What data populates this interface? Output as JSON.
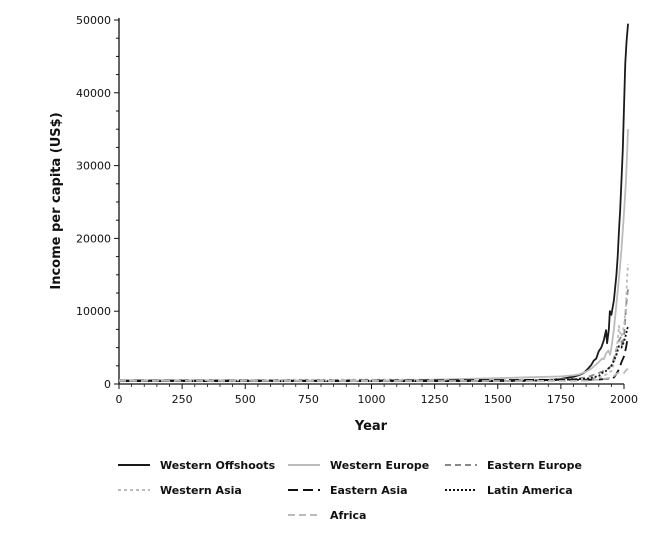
{
  "chart_data": {
    "type": "line",
    "title": "",
    "xlabel": "Year",
    "ylabel": "Income per capita (US$)",
    "xlim": [
      0,
      2000
    ],
    "ylim": [
      0,
      50000
    ],
    "x_ticks": [
      0,
      250,
      500,
      750,
      1000,
      1250,
      1500,
      1750,
      2000
    ],
    "y_ticks": [
      0,
      10000,
      20000,
      30000,
      40000,
      50000
    ],
    "grid": false,
    "legend_position": "bottom",
    "series": [
      {
        "name": "Western Offshoots",
        "color": "#1a1a1a",
        "dash": "solid",
        "points": [
          [
            0,
            400
          ],
          [
            500,
            400
          ],
          [
            1000,
            400
          ],
          [
            1500,
            400
          ],
          [
            1600,
            450
          ],
          [
            1700,
            550
          ],
          [
            1750,
            700
          ],
          [
            1800,
            1000
          ],
          [
            1820,
            1200
          ],
          [
            1840,
            1500
          ],
          [
            1860,
            2200
          ],
          [
            1870,
            2600
          ],
          [
            1880,
            3200
          ],
          [
            1890,
            3500
          ],
          [
            1900,
            4500
          ],
          [
            1910,
            5000
          ],
          [
            1913,
            5300
          ],
          [
            1920,
            6000
          ],
          [
            1929,
            7400
          ],
          [
            1933,
            5600
          ],
          [
            1940,
            7500
          ],
          [
            1944,
            10000
          ],
          [
            1950,
            9500
          ],
          [
            1960,
            11500
          ],
          [
            1970,
            15000
          ],
          [
            1975,
            17500
          ],
          [
            1980,
            21000
          ],
          [
            1985,
            24000
          ],
          [
            1990,
            28000
          ],
          [
            1995,
            32000
          ],
          [
            2000,
            38000
          ],
          [
            2005,
            44000
          ],
          [
            2010,
            47000
          ],
          [
            2016,
            49500
          ]
        ]
      },
      {
        "name": "Western Europe",
        "color": "#bbbbbb",
        "dash": "solid",
        "points": [
          [
            0,
            550
          ],
          [
            500,
            500
          ],
          [
            1000,
            450
          ],
          [
            1250,
            600
          ],
          [
            1500,
            800
          ],
          [
            1600,
            900
          ],
          [
            1700,
            1000
          ],
          [
            1750,
            1050
          ],
          [
            1800,
            1200
          ],
          [
            1820,
            1300
          ],
          [
            1850,
            1700
          ],
          [
            1870,
            2100
          ],
          [
            1900,
            3000
          ],
          [
            1913,
            3500
          ],
          [
            1920,
            3400
          ],
          [
            1929,
            4200
          ],
          [
            1938,
            4600
          ],
          [
            1945,
            4000
          ],
          [
            1950,
            5000
          ],
          [
            1960,
            7500
          ],
          [
            1970,
            11000
          ],
          [
            1980,
            14500
          ],
          [
            1990,
            18500
          ],
          [
            2000,
            23500
          ],
          [
            2008,
            28000
          ],
          [
            2016,
            35000
          ]
        ]
      },
      {
        "name": "Eastern Europe",
        "color": "#888888",
        "dash": "6,4",
        "points": [
          [
            0,
            400
          ],
          [
            1000,
            400
          ],
          [
            1500,
            500
          ],
          [
            1700,
            600
          ],
          [
            1800,
            700
          ],
          [
            1850,
            900
          ],
          [
            1900,
            1500
          ],
          [
            1913,
            1700
          ],
          [
            1929,
            1900
          ],
          [
            1950,
            2500
          ],
          [
            1960,
            3500
          ],
          [
            1970,
            4800
          ],
          [
            1980,
            6000
          ],
          [
            1989,
            6500
          ],
          [
            1992,
            5000
          ],
          [
            2000,
            6500
          ],
          [
            2008,
            10500
          ],
          [
            2012,
            12000
          ],
          [
            2016,
            13000
          ]
        ]
      },
      {
        "name": "Western Asia",
        "color": "#bbbbbb",
        "dash": "3,3",
        "points": [
          [
            0,
            520
          ],
          [
            1000,
            600
          ],
          [
            1500,
            600
          ],
          [
            1700,
            600
          ],
          [
            1800,
            650
          ],
          [
            1850,
            700
          ],
          [
            1900,
            850
          ],
          [
            1913,
            1000
          ],
          [
            1929,
            1300
          ],
          [
            1950,
            1800
          ],
          [
            1960,
            2800
          ],
          [
            1970,
            4500
          ],
          [
            1975,
            6000
          ],
          [
            1980,
            8000
          ],
          [
            1985,
            7000
          ],
          [
            1990,
            6500
          ],
          [
            2000,
            8000
          ],
          [
            2008,
            11000
          ],
          [
            2012,
            14500
          ],
          [
            2016,
            16500
          ]
        ]
      },
      {
        "name": "Eastern Asia",
        "color": "#111111",
        "dash": "10,5",
        "points": [
          [
            0,
            450
          ],
          [
            1000,
            470
          ],
          [
            1500,
            550
          ],
          [
            1700,
            560
          ],
          [
            1800,
            580
          ],
          [
            1850,
            580
          ],
          [
            1900,
            600
          ],
          [
            1913,
            650
          ],
          [
            1929,
            700
          ],
          [
            1940,
            750
          ],
          [
            1950,
            600
          ],
          [
            1960,
            900
          ],
          [
            1970,
            1400
          ],
          [
            1980,
            2000
          ],
          [
            1990,
            3000
          ],
          [
            2000,
            3800
          ],
          [
            2008,
            5000
          ],
          [
            2012,
            5800
          ],
          [
            2016,
            6500
          ]
        ]
      },
      {
        "name": "Latin America",
        "color": "#111111",
        "dash": "2,2",
        "points": [
          [
            0,
            400
          ],
          [
            1000,
            400
          ],
          [
            1500,
            420
          ],
          [
            1600,
            430
          ],
          [
            1700,
            500
          ],
          [
            1800,
            650
          ],
          [
            1850,
            700
          ],
          [
            1900,
            1100
          ],
          [
            1913,
            1500
          ],
          [
            1929,
            1800
          ],
          [
            1950,
            2500
          ],
          [
            1960,
            3200
          ],
          [
            1970,
            4000
          ],
          [
            1980,
            5200
          ],
          [
            1990,
            5000
          ],
          [
            2000,
            5800
          ],
          [
            2008,
            6800
          ],
          [
            2012,
            7500
          ],
          [
            2016,
            7900
          ]
        ]
      },
      {
        "name": "Africa",
        "color": "#bbbbbb",
        "dash": "7,4",
        "points": [
          [
            0,
            430
          ],
          [
            1000,
            420
          ],
          [
            1500,
            410
          ],
          [
            1700,
            420
          ],
          [
            1800,
            430
          ],
          [
            1850,
            450
          ],
          [
            1900,
            600
          ],
          [
            1913,
            650
          ],
          [
            1929,
            750
          ],
          [
            1950,
            900
          ],
          [
            1960,
            1100
          ],
          [
            1970,
            1400
          ],
          [
            1980,
            1550
          ],
          [
            1990,
            1450
          ],
          [
            2000,
            1500
          ],
          [
            2008,
            1900
          ],
          [
            2016,
            2100
          ]
        ]
      }
    ]
  }
}
